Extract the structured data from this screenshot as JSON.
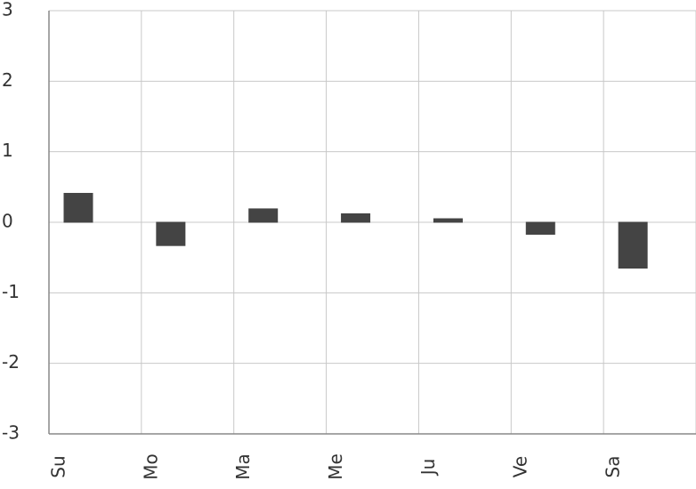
{
  "chart_data": {
    "type": "bar",
    "categories": [
      "Su",
      "Mo",
      "Ma",
      "Me",
      "Ju",
      "Ve",
      "Sa"
    ],
    "series": [
      {
        "color": "#444444",
        "values": [
          0.41,
          -0.33,
          0.19,
          0.12,
          0.05,
          -0.17,
          -0.65
        ]
      },
      {
        "color": "#444444",
        "values": [
          0,
          0,
          0,
          0,
          0,
          0,
          0
        ]
      }
    ],
    "ylim": [
      -3,
      3
    ],
    "yticks": [
      -3,
      -2,
      -1,
      0,
      1,
      2,
      3
    ],
    "grid": true
  }
}
